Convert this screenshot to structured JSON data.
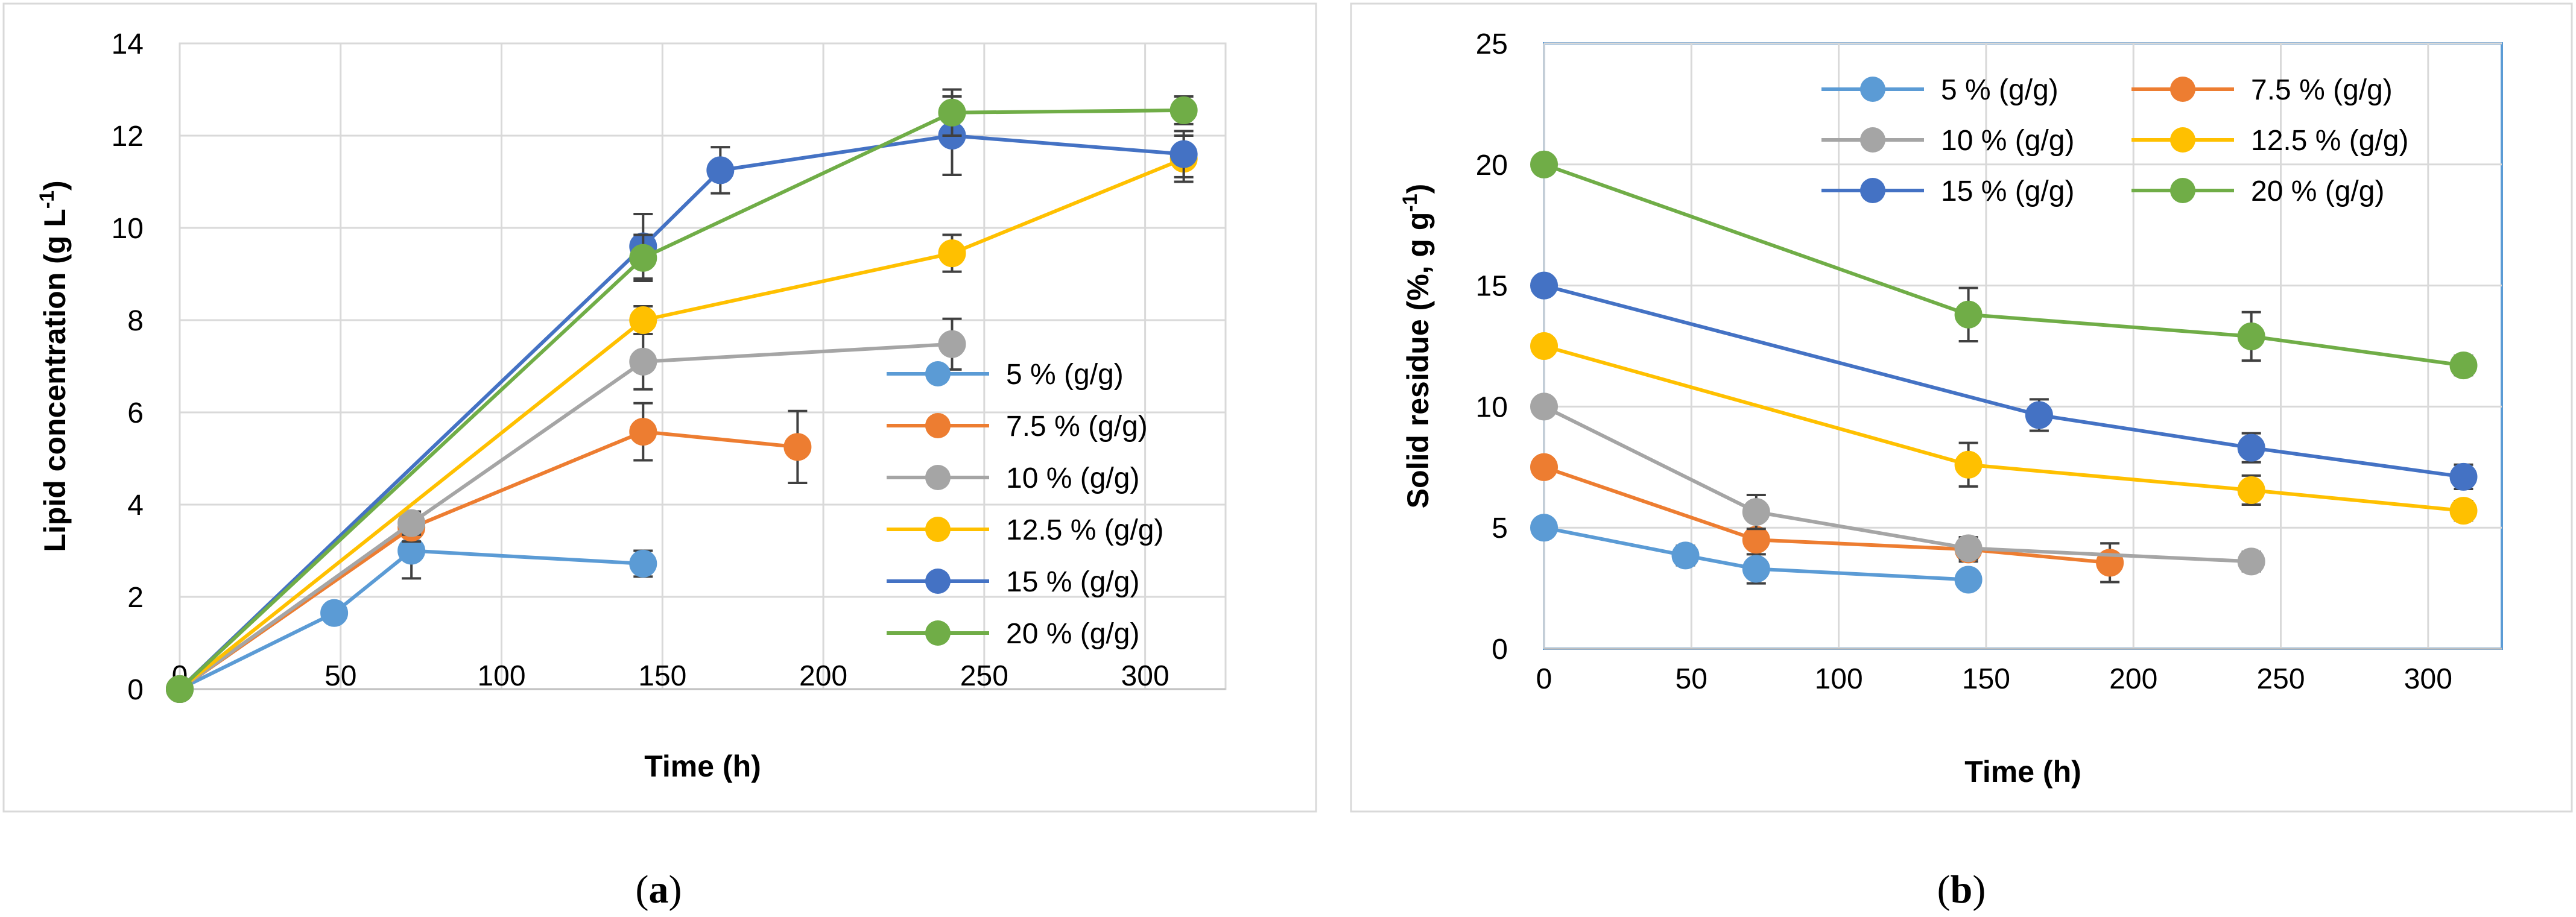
{
  "chart_data": [
    {
      "type": "line",
      "panel_label": "a",
      "xlabel": "Time (h)",
      "ylabel_parts": [
        "Lipid concentration  (g L",
        "-1",
        ")"
      ],
      "xlim": [
        0,
        325
      ],
      "ylim": [
        0,
        14
      ],
      "xticks": [
        0,
        50,
        100,
        150,
        200,
        250,
        300
      ],
      "yticks": [
        0,
        2,
        4,
        6,
        8,
        10,
        12,
        14
      ],
      "grid": true,
      "legend_position": "lower-right, single column",
      "series": [
        {
          "name": "5 % (g/g)",
          "color": "#5B9BD5",
          "x": [
            0,
            48,
            72,
            144
          ],
          "y": [
            0,
            1.65,
            3.0,
            2.72
          ],
          "err": [
            0,
            0,
            0.6,
            0.28
          ]
        },
        {
          "name": "7.5 % (g/g)",
          "color": "#ED7D31",
          "x": [
            0,
            72,
            144,
            192
          ],
          "y": [
            0,
            3.5,
            5.58,
            5.25
          ],
          "err": [
            0,
            0.3,
            0.62,
            0.78
          ]
        },
        {
          "name": "10 % (g/g)",
          "color": "#A5A5A5",
          "x": [
            0,
            72,
            144,
            240
          ],
          "y": [
            0,
            3.6,
            7.1,
            7.48
          ],
          "err": [
            0,
            0.25,
            0.6,
            0.55
          ]
        },
        {
          "name": "12.5 % (g/g)",
          "color": "#FFC000",
          "x": [
            0,
            144,
            240,
            312
          ],
          "y": [
            0,
            8.0,
            9.45,
            11.5
          ],
          "err": [
            0,
            0.3,
            0.4,
            0.5
          ]
        },
        {
          "name": "15 % (g/g)",
          "color": "#4472C4",
          "x": [
            0,
            144,
            168,
            240,
            312
          ],
          "y": [
            0,
            9.6,
            11.25,
            12.0,
            11.6
          ],
          "err": [
            0,
            0.7,
            0.5,
            0.85,
            0.5
          ]
        },
        {
          "name": "20 % (g/g)",
          "color": "#70AD47",
          "x": [
            0,
            144,
            240,
            312
          ],
          "y": [
            0,
            9.35,
            12.5,
            12.55
          ],
          "err": [
            0,
            0.5,
            0.5,
            0.3
          ]
        }
      ]
    },
    {
      "type": "line",
      "panel_label": "b",
      "xlabel": "Time (h)",
      "ylabel_parts": [
        "Solid residue (%, g g",
        "-1",
        ")"
      ],
      "xlim": [
        0,
        325
      ],
      "ylim": [
        0,
        25
      ],
      "xticks": [
        0,
        50,
        100,
        150,
        200,
        250,
        300
      ],
      "yticks": [
        0,
        5,
        10,
        15,
        20,
        25
      ],
      "grid": true,
      "legend_position": "top, two columns",
      "series": [
        {
          "name": "5 % (g/g)",
          "color": "#5B9BD5",
          "x": [
            0,
            48,
            72,
            144
          ],
          "y": [
            5.0,
            3.85,
            3.3,
            2.85
          ],
          "err": [
            0,
            0.4,
            0.6,
            0.3
          ]
        },
        {
          "name": "7.5 % (g/g)",
          "color": "#ED7D31",
          "x": [
            0,
            72,
            144,
            192
          ],
          "y": [
            7.5,
            4.5,
            4.1,
            3.55
          ],
          "err": [
            0,
            0.3,
            0.5,
            0.8
          ]
        },
        {
          "name": "10 % (g/g)",
          "color": "#A5A5A5",
          "x": [
            0,
            72,
            144,
            240
          ],
          "y": [
            10.0,
            5.65,
            4.15,
            3.6
          ],
          "err": [
            0,
            0.7,
            0.45,
            0.4
          ]
        },
        {
          "name": "12.5 % (g/g)",
          "color": "#FFC000",
          "x": [
            0,
            144,
            240,
            312
          ],
          "y": [
            12.5,
            7.6,
            6.55,
            5.7
          ],
          "err": [
            0,
            0.9,
            0.6,
            0.4
          ]
        },
        {
          "name": "15 % (g/g)",
          "color": "#4472C4",
          "x": [
            0,
            168,
            240,
            312
          ],
          "y": [
            15.0,
            9.65,
            8.3,
            7.1
          ],
          "err": [
            0,
            0.65,
            0.6,
            0.5
          ]
        },
        {
          "name": "20 % (g/g)",
          "color": "#70AD47",
          "x": [
            0,
            144,
            240,
            312
          ],
          "y": [
            20.0,
            13.8,
            12.9,
            11.7
          ],
          "err": [
            0,
            1.1,
            1.0,
            0.4
          ]
        }
      ]
    }
  ]
}
